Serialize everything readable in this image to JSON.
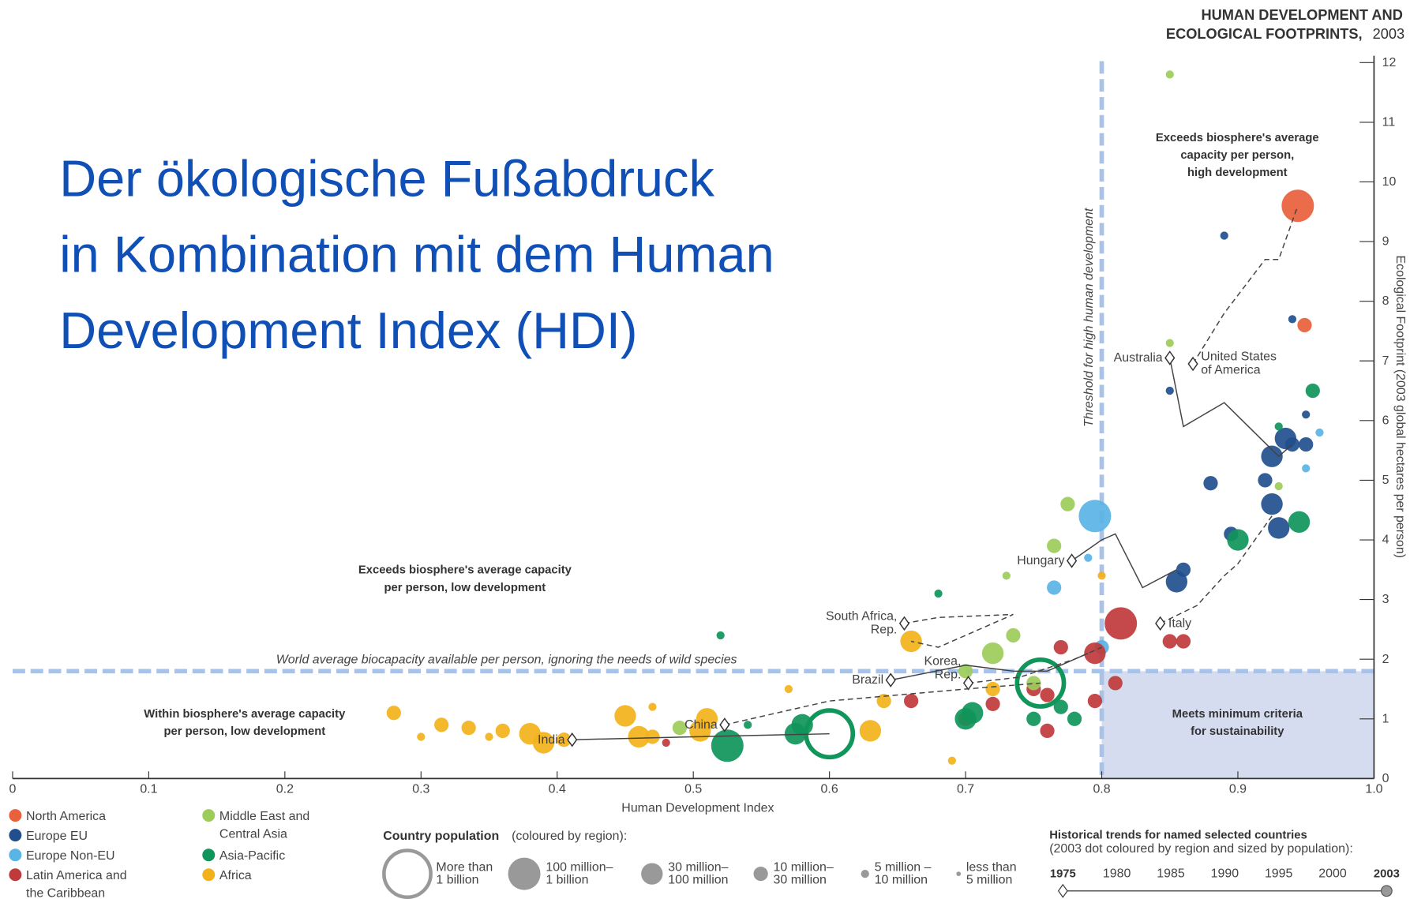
{
  "slide_title": [
    "Der ökologische Fußabdruck",
    "in Kombination mit dem Human",
    "Development Index (HDI)"
  ],
  "chart_data": {
    "type": "scatter",
    "title": [
      "HUMAN DEVELOPMENT AND",
      "ECOLOGICAL FOOTPRINTS,"
    ],
    "title_year": "2003",
    "x_label": "Human Development Index",
    "y_label": "Ecological Footprint (2003 global hectares per person)",
    "xlim": [
      0,
      1
    ],
    "ylim": [
      0,
      12.1
    ],
    "xticks": [
      0,
      0.1,
      0.2,
      0.3,
      0.4,
      0.5,
      0.6,
      0.7,
      0.8,
      0.9,
      {
        "value": 1,
        "label": "1.0"
      }
    ],
    "yticks": [
      0,
      1,
      2,
      3,
      4,
      5,
      6,
      7,
      8,
      9,
      10,
      11,
      12
    ],
    "threshold": {
      "value": 0.8,
      "label": "Threshold for high human development"
    },
    "world_average": {
      "value": 1.8,
      "label": "World average biocapacity available per person, ignoring the needs of wild species"
    },
    "annotations": [
      [
        "Exceeds biosphere's average",
        "capacity per person,",
        "high development"
      ],
      [
        "Exceeds biosphere's average capacity",
        "per person, low development"
      ],
      [
        "Within biosphere's average capacity",
        "per person, low development"
      ],
      [
        "Meets minimum criteria",
        "for sustainability"
      ]
    ],
    "series": [
      {
        "name": [
          "North America"
        ],
        "color": "#e8603c",
        "x": [
          0.944,
          0.949
        ],
        "values": [
          9.6,
          7.6
        ],
        "pop_class": [
          1,
          3
        ]
      },
      {
        "name": [
          "Europe EU"
        ],
        "color": "#214f8e",
        "x": [
          0.925,
          0.935,
          0.94,
          0.95,
          0.925,
          0.93,
          0.895,
          0.855,
          0.86,
          0.88,
          0.92,
          0.95,
          0.89,
          0.94,
          0.85
        ],
        "values": [
          5.4,
          5.7,
          5.6,
          5.6,
          4.6,
          4.2,
          4.1,
          3.3,
          3.5,
          4.95,
          5.0,
          6.1,
          9.1,
          7.7,
          6.5
        ],
        "pop_class": [
          2,
          2,
          3,
          3,
          2,
          2,
          3,
          2,
          3,
          3,
          3,
          4,
          4,
          4,
          4
        ]
      },
      {
        "name": [
          "Europe Non-EU"
        ],
        "color": "#5ab4e5",
        "x": [
          0.795,
          0.765,
          0.95,
          0.96,
          0.8,
          0.79
        ],
        "values": [
          4.4,
          3.2,
          5.2,
          5.8,
          2.2,
          3.7
        ],
        "pop_class": [
          1,
          3,
          4,
          4,
          3,
          4
        ]
      },
      {
        "name": [
          "Latin America and",
          "the Caribbean"
        ],
        "color": "#c0393b",
        "x": [
          0.814,
          0.795,
          0.77,
          0.795,
          0.76,
          0.75,
          0.7,
          0.72,
          0.85,
          0.86,
          0.81,
          0.76,
          0.66,
          0.48
        ],
        "values": [
          2.6,
          2.1,
          2.2,
          1.3,
          1.4,
          1.5,
          1.0,
          1.25,
          2.3,
          2.3,
          1.6,
          0.8,
          1.3,
          0.6
        ],
        "pop_class": [
          1,
          2,
          3,
          3,
          3,
          3,
          3,
          3,
          3,
          3,
          3,
          3,
          3,
          4
        ]
      },
      {
        "name": [
          "Middle East and",
          "Central Asia"
        ],
        "color": "#9ccc5a",
        "x": [
          0.85,
          0.72,
          0.735,
          0.765,
          0.775,
          0.73,
          0.7,
          0.49,
          0.85,
          0.93,
          0.75
        ],
        "values": [
          11.8,
          2.1,
          2.4,
          3.9,
          4.6,
          3.4,
          1.8,
          0.85,
          7.3,
          4.9,
          1.6
        ],
        "pop_class": [
          4,
          2,
          3,
          3,
          3,
          4,
          3,
          3,
          4,
          4,
          3
        ]
      },
      {
        "name": [
          "Asia-Pacific"
        ],
        "color": "#10955a",
        "x": [
          0.6,
          0.755,
          0.525,
          0.7,
          0.705,
          0.58,
          0.575,
          0.75,
          0.78,
          0.9,
          0.945,
          0.955,
          0.52,
          0.68,
          0.54,
          0.93,
          0.77
        ],
        "values": [
          0.75,
          1.6,
          0.55,
          1.0,
          1.1,
          0.9,
          0.75,
          1.0,
          1.0,
          4.0,
          4.3,
          6.5,
          2.4,
          3.1,
          0.9,
          5.9,
          1.2
        ],
        "pop_class": [
          0,
          0,
          1,
          2,
          2,
          2,
          2,
          3,
          3,
          2,
          2,
          3,
          4,
          4,
          4,
          4,
          3
        ]
      },
      {
        "name": [
          "Africa"
        ],
        "color": "#f3b21a",
        "x": [
          0.28,
          0.315,
          0.335,
          0.36,
          0.38,
          0.39,
          0.405,
          0.45,
          0.46,
          0.47,
          0.505,
          0.51,
          0.66,
          0.63,
          0.64,
          0.69,
          0.8,
          0.72,
          0.47,
          0.3,
          0.35,
          0.57
        ],
        "values": [
          1.1,
          0.9,
          0.85,
          0.8,
          0.75,
          0.6,
          0.65,
          1.05,
          0.7,
          0.7,
          0.8,
          1.0,
          2.3,
          0.8,
          1.3,
          0.3,
          3.4,
          1.5,
          1.2,
          0.7,
          0.7,
          1.5
        ],
        "pop_class": [
          3,
          3,
          3,
          3,
          2,
          2,
          3,
          2,
          2,
          3,
          2,
          2,
          2,
          2,
          3,
          4,
          4,
          3,
          4,
          4,
          4,
          4
        ]
      }
    ],
    "trends": [
      {
        "name": [
          "United States",
          "of America"
        ],
        "x": [
          0.867,
          0.89,
          0.92,
          0.93,
          0.944
        ],
        "values": [
          6.95,
          7.8,
          8.7,
          8.7,
          9.6
        ],
        "dashed": true
      },
      {
        "name": [
          "Australia"
        ],
        "x": [
          0.85,
          0.86,
          0.89,
          0.93,
          0.94
        ],
        "values": [
          7.05,
          5.9,
          6.3,
          5.4,
          5.6
        ],
        "dashed": false
      },
      {
        "name": [
          "Hungary"
        ],
        "x": [
          0.778,
          0.8,
          0.81,
          0.83,
          0.855
        ],
        "values": [
          3.65,
          4.0,
          4.1,
          3.2,
          3.5
        ],
        "dashed": false
      },
      {
        "name": [
          "Italy"
        ],
        "x": [
          0.843,
          0.87,
          0.89,
          0.9,
          0.925
        ],
        "values": [
          2.6,
          2.9,
          3.4,
          3.6,
          4.4
        ],
        "dashed": true
      },
      {
        "name": [
          "South Africa,",
          "Rep."
        ],
        "x": [
          0.655,
          0.68,
          0.735,
          0.68,
          0.66
        ],
        "values": [
          2.6,
          2.7,
          2.75,
          2.2,
          2.3
        ],
        "dashed": true
      },
      {
        "name": [
          "Korea,",
          "Rep."
        ],
        "x": [
          0.702,
          0.74,
          0.78,
          0.8
        ],
        "values": [
          1.6,
          1.7,
          2.0,
          2.2
        ],
        "dashed": true
      },
      {
        "name": [
          "Brazil"
        ],
        "x": [
          0.645,
          0.7,
          0.735,
          0.76,
          0.79
        ],
        "values": [
          1.65,
          1.9,
          1.8,
          1.8,
          2.1
        ],
        "dashed": false
      },
      {
        "name": [
          "China"
        ],
        "x": [
          0.523,
          0.6,
          0.7,
          0.755
        ],
        "values": [
          0.9,
          1.3,
          1.5,
          1.6
        ],
        "dashed": true
      },
      {
        "name": [
          "India"
        ],
        "x": [
          0.411,
          0.5,
          0.6
        ],
        "values": [
          0.65,
          0.7,
          0.75
        ],
        "dashed": false
      }
    ],
    "population_legend": {
      "title": "Country population",
      "subtitle": "(coloured by region):",
      "classes": [
        [
          "More than",
          "1 billion"
        ],
        [
          "100 million–",
          "1 billion"
        ],
        [
          "30 million–",
          "100 million"
        ],
        [
          "10 million–",
          "30 million"
        ],
        [
          "5 million –",
          "10 million"
        ],
        [
          "less than",
          "5 million"
        ]
      ]
    },
    "trend_legend": {
      "title": "Historical trends for named selected countries",
      "subtitle": "(2003 dot coloured by region and sized by population):",
      "years": [
        1975,
        1980,
        1985,
        1990,
        1995,
        2000,
        2003
      ]
    }
  }
}
